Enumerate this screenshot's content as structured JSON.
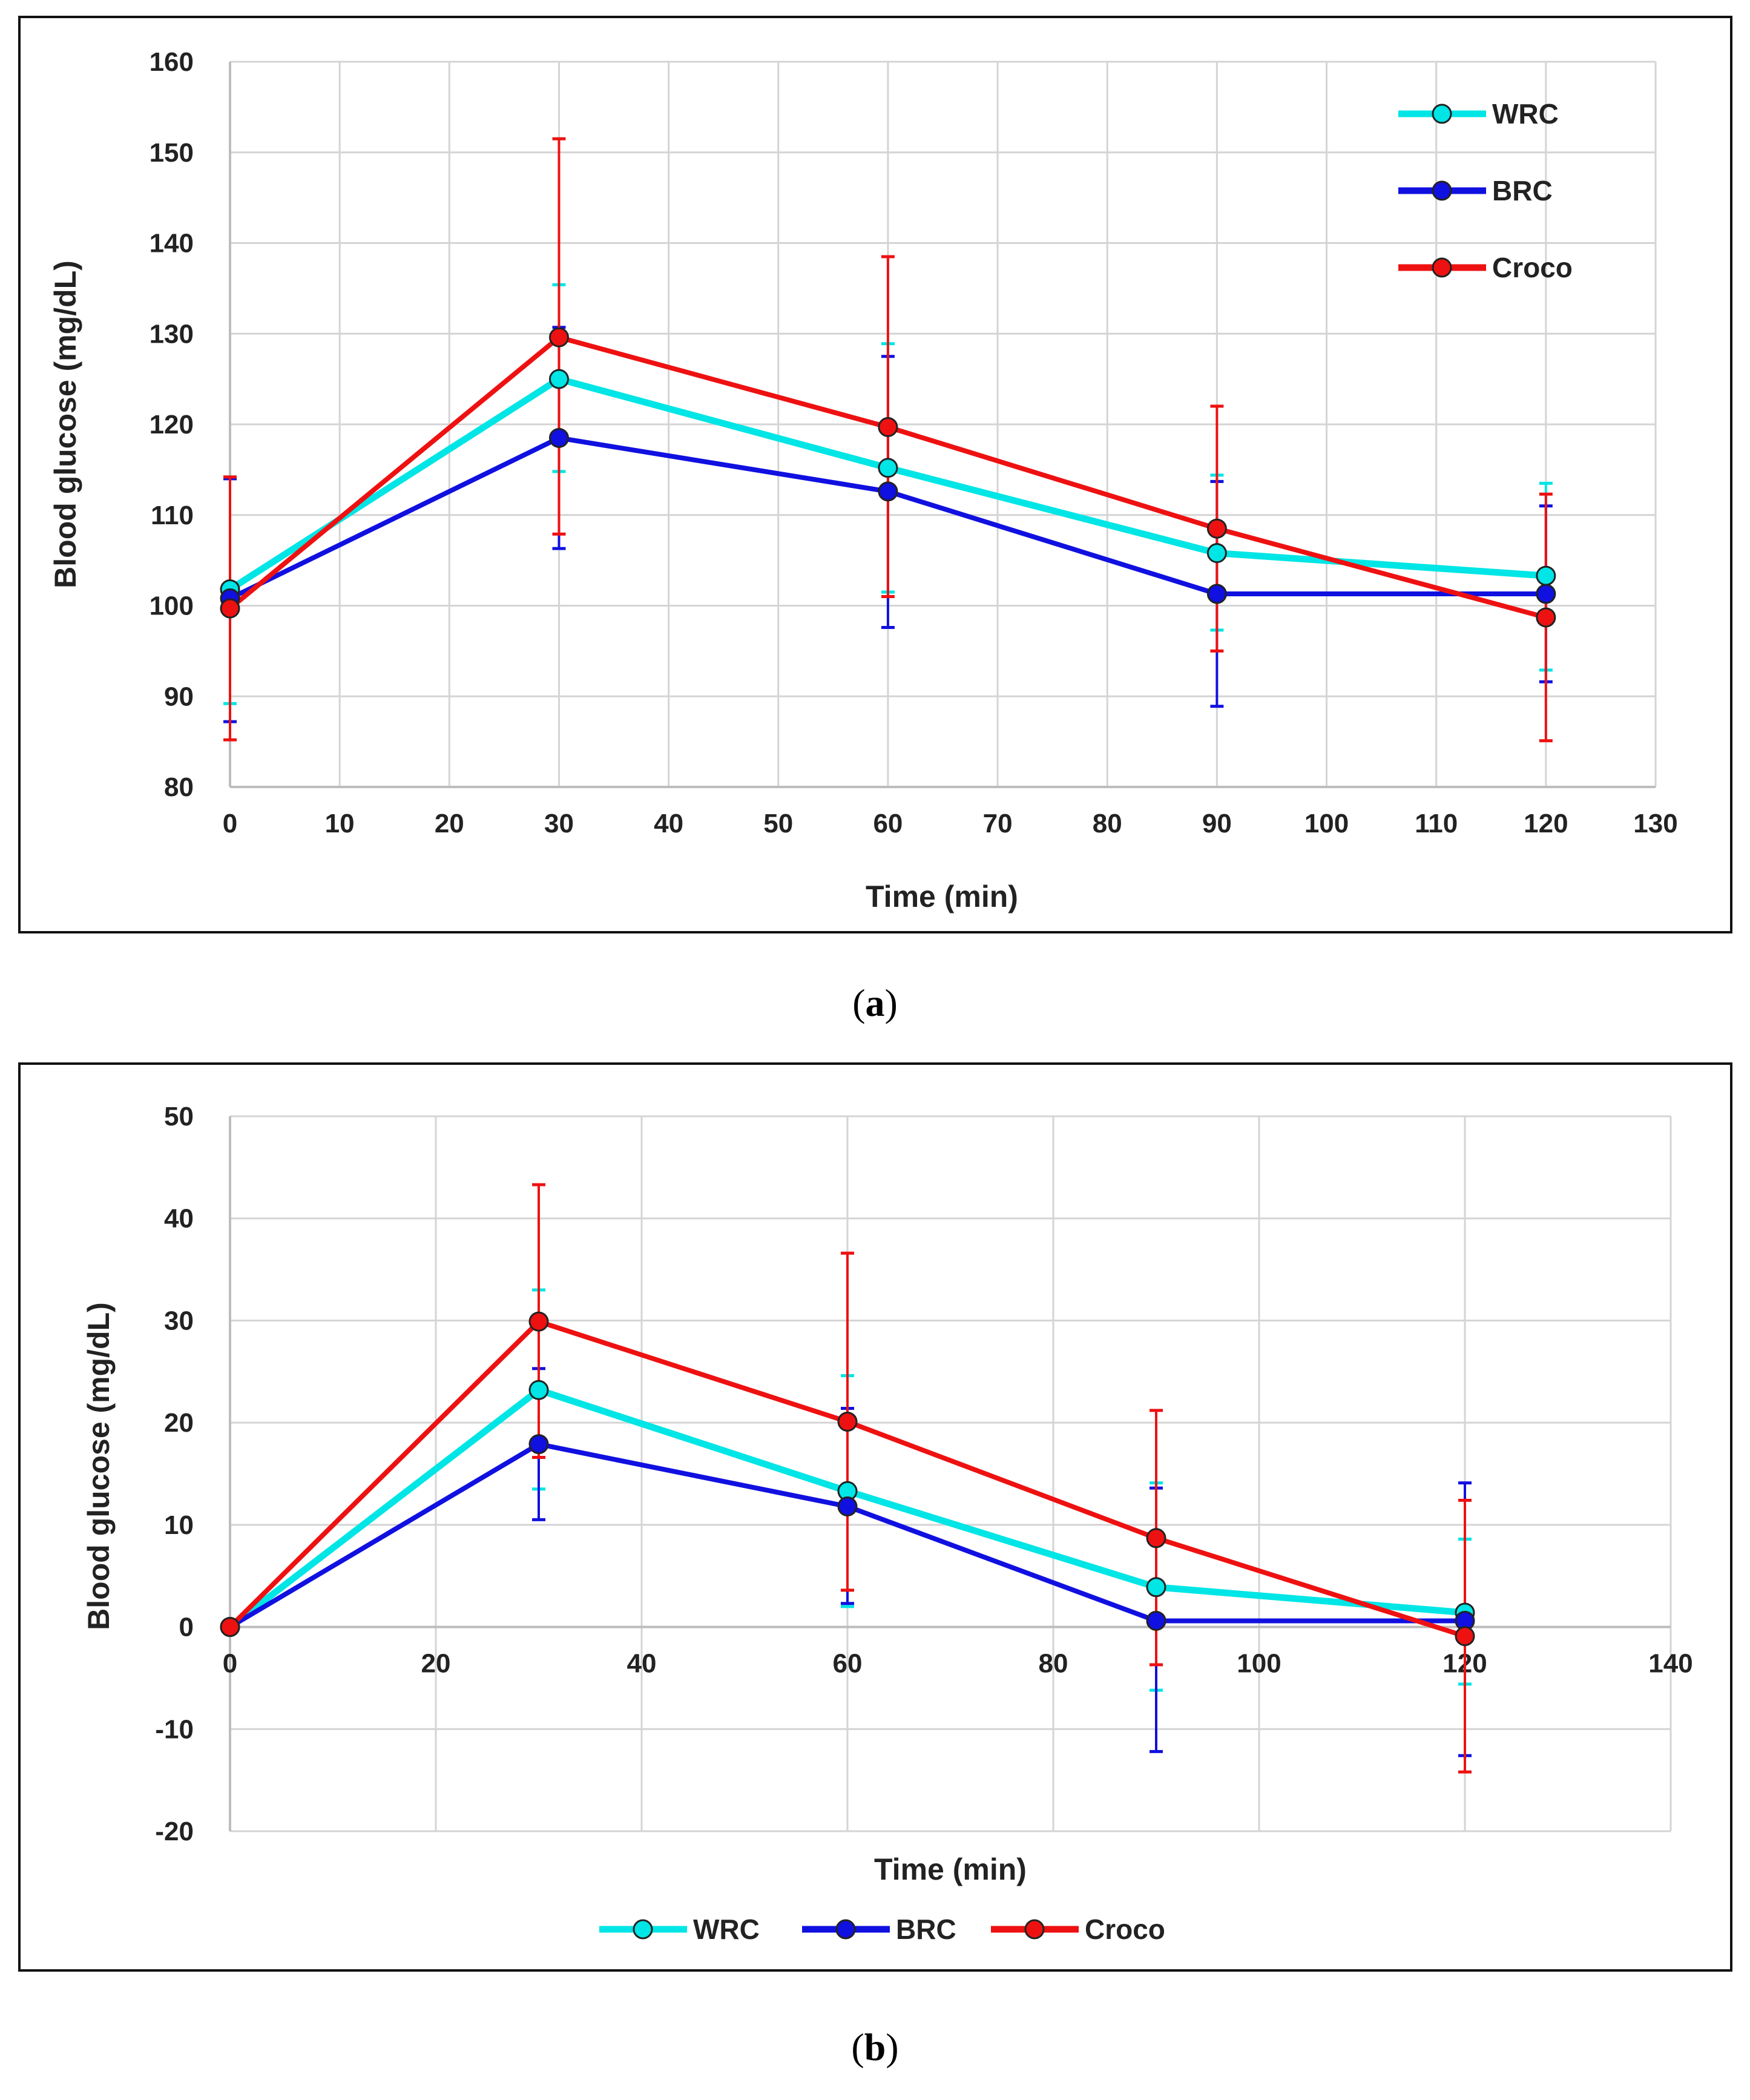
{
  "captions": {
    "a_open": "(",
    "a_letter": "a",
    "a_close": ")",
    "b_open": "(",
    "b_letter": "b",
    "b_close": ")"
  },
  "colors": {
    "WRC": "#00e5e5",
    "BRC": "#1010e0",
    "Croco": "#ee1111",
    "grid": "#d4d4d4",
    "axis": "#bdbdbd"
  },
  "chart_data": [
    {
      "id": "a",
      "type": "line",
      "title": "",
      "xlabel": "Time (min)",
      "ylabel": "Blood glucose  (mg/dL)",
      "xlim": [
        0,
        130
      ],
      "ylim": [
        80,
        160
      ],
      "xticks": [
        0,
        10,
        20,
        30,
        40,
        50,
        60,
        70,
        80,
        90,
        100,
        110,
        120,
        130
      ],
      "yticks": [
        80,
        90,
        100,
        110,
        120,
        130,
        140,
        150,
        160
      ],
      "x": [
        0,
        30,
        60,
        90,
        120
      ],
      "grid": true,
      "legend": "top-right",
      "series": [
        {
          "name": "WRC",
          "values": [
            101.8,
            125.0,
            115.2,
            105.8,
            103.3
          ],
          "err_low": [
            89.2,
            114.8,
            101.5,
            97.3,
            92.9
          ],
          "err_high": [
            114.2,
            135.4,
            128.9,
            114.4,
            113.5
          ]
        },
        {
          "name": "BRC",
          "values": [
            100.8,
            118.5,
            112.6,
            101.3,
            101.3
          ],
          "err_low": [
            87.2,
            106.3,
            97.6,
            88.9,
            91.6
          ],
          "err_high": [
            114.0,
            130.7,
            127.5,
            113.7,
            111.0
          ]
        },
        {
          "name": "Croco",
          "values": [
            99.7,
            129.6,
            119.7,
            108.5,
            98.7
          ],
          "err_low": [
            85.2,
            107.9,
            101.0,
            95.0,
            85.1
          ],
          "err_high": [
            114.2,
            151.5,
            138.5,
            122.0,
            112.3
          ]
        }
      ]
    },
    {
      "id": "b",
      "type": "line",
      "title": "",
      "xlabel": "Time (min)",
      "ylabel": "Blood glucose (mg/dL)",
      "xlim": [
        0,
        140
      ],
      "ylim": [
        -20,
        50
      ],
      "xticks": [
        0,
        20,
        40,
        60,
        80,
        100,
        120,
        140
      ],
      "yticks": [
        -20,
        -10,
        0,
        10,
        20,
        30,
        40,
        50
      ],
      "x": [
        0,
        30,
        60,
        90,
        120
      ],
      "grid": true,
      "legend": "bottom-center",
      "series": [
        {
          "name": "WRC",
          "values": [
            0,
            23.2,
            13.3,
            3.9,
            1.4
          ],
          "err_low": [
            0,
            13.5,
            2.0,
            -6.2,
            -5.6
          ],
          "err_high": [
            0,
            33.0,
            24.6,
            14.1,
            8.6
          ]
        },
        {
          "name": "BRC",
          "values": [
            0,
            17.9,
            11.8,
            0.6,
            0.6
          ],
          "err_low": [
            0,
            10.5,
            2.3,
            -12.2,
            -12.6
          ],
          "err_high": [
            0,
            25.3,
            21.4,
            13.6,
            14.1
          ]
        },
        {
          "name": "Croco",
          "values": [
            0,
            29.9,
            20.1,
            8.7,
            -0.9
          ],
          "err_low": [
            0,
            16.6,
            3.6,
            -3.7,
            -14.2
          ],
          "err_high": [
            0,
            43.3,
            36.6,
            21.2,
            12.4
          ]
        }
      ]
    }
  ]
}
